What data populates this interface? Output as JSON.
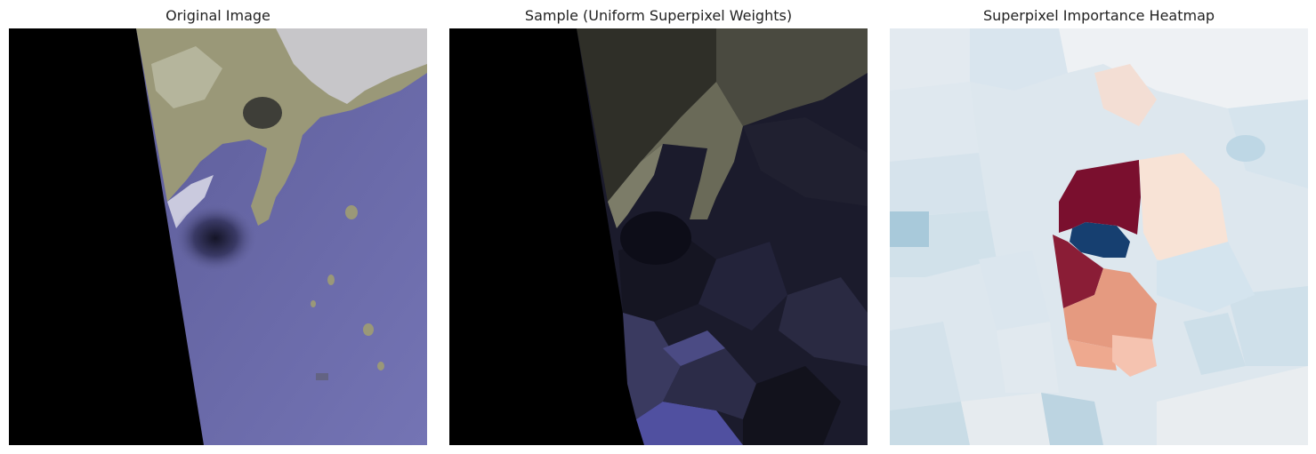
{
  "panels": [
    {
      "title": "Original Image"
    },
    {
      "title": "Sample (Uniform Superpixel Weights)"
    },
    {
      "title": "Superpixel Importance Heatmap"
    }
  ],
  "colors": {
    "background": "#ffffff",
    "no_data": "#000000",
    "sea": "#6b6ba8",
    "land": "#9a9878",
    "cloud": "#e8e8f2",
    "heat_positive": "#7a0f2e",
    "heat_negative": "#163f70",
    "heat_neutral": "#dfe8ef"
  }
}
